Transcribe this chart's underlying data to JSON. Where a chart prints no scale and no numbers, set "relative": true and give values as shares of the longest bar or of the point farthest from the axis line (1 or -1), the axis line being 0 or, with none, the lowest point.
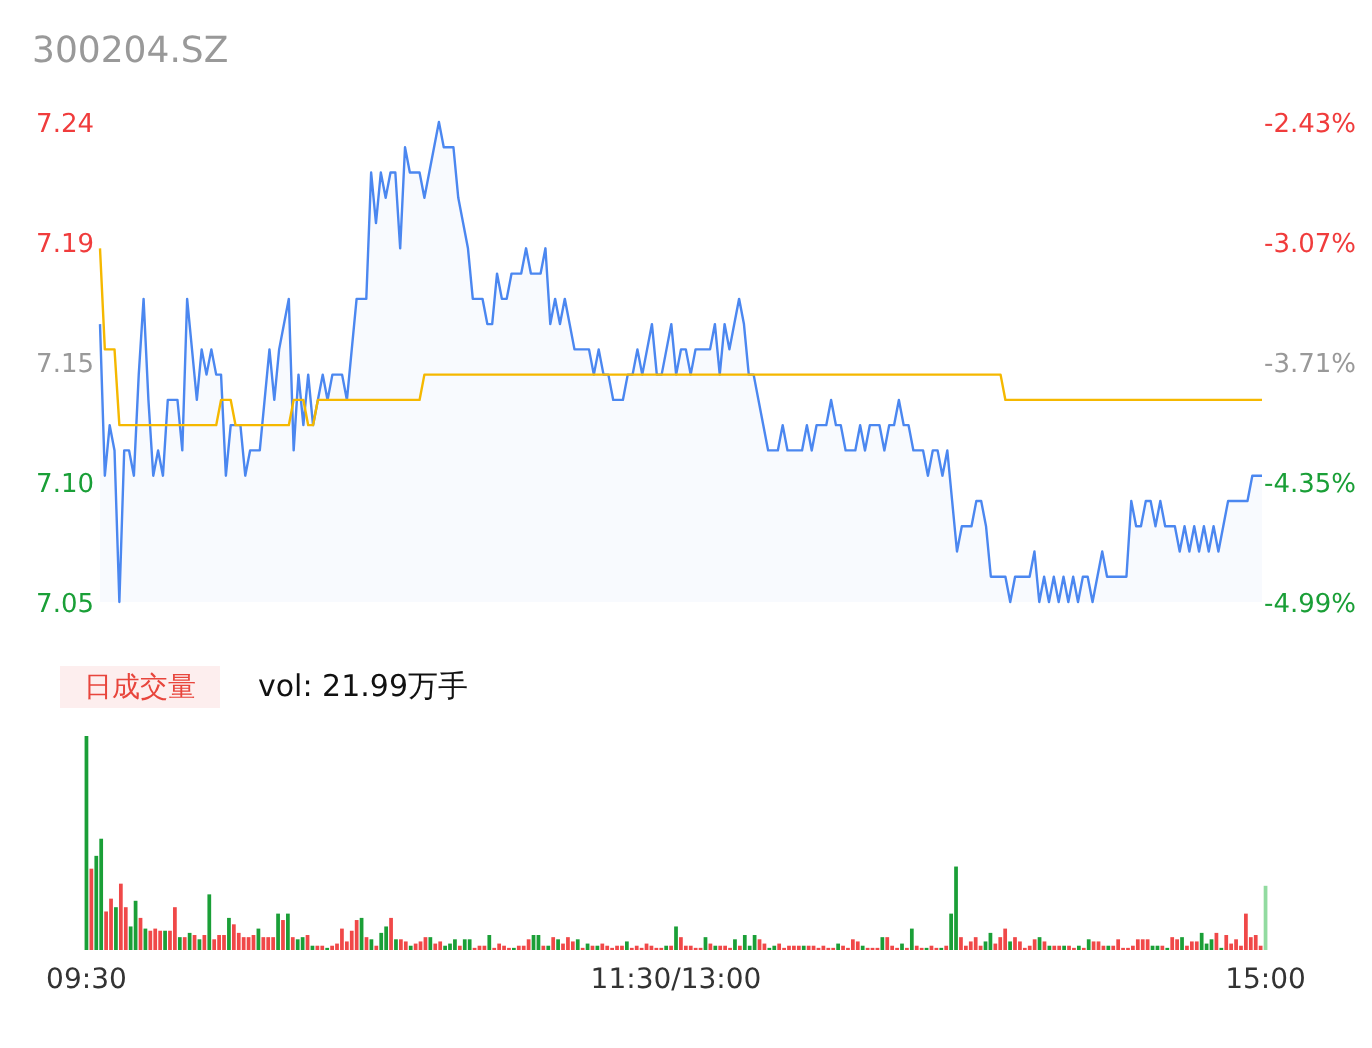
{
  "chart_data": [
    {
      "type": "line",
      "title": "300204.SZ",
      "ylim": [
        7.05,
        7.24
      ],
      "yticks": [
        {
          "value": 7.05,
          "label": "7.05"
        },
        {
          "value": 7.0975,
          "label": "7.10"
        },
        {
          "value": 7.145,
          "label": "7.15"
        },
        {
          "value": 7.1925,
          "label": "7.19"
        },
        {
          "value": 7.24,
          "label": "7.24"
        }
      ],
      "y2lim": [
        -4.99,
        -2.43
      ],
      "y2ticks": [
        {
          "value": -4.99,
          "label": "-4.99%"
        },
        {
          "value": -4.35,
          "label": "-4.35%"
        },
        {
          "value": -3.71,
          "label": "-3.71%"
        },
        {
          "value": -3.07,
          "label": "-3.07%"
        },
        {
          "value": -2.43,
          "label": "-2.43%"
        }
      ],
      "tick_labels": "y",
      "categories": [
        null,
        null,
        null,
        null,
        null,
        null,
        null,
        null,
        null,
        null,
        null,
        null,
        null,
        null,
        null,
        null,
        null,
        null,
        null,
        null,
        null,
        null,
        null,
        null,
        null,
        null,
        null,
        null,
        null,
        null,
        null,
        null,
        null,
        null,
        null,
        null,
        null,
        null,
        null,
        null,
        null,
        null,
        null,
        null,
        null,
        null,
        null,
        null,
        null,
        null,
        null,
        null,
        null,
        null,
        null,
        null,
        null,
        null,
        null,
        null,
        null,
        null,
        null,
        null,
        null,
        null,
        null,
        null,
        null,
        null,
        null,
        null,
        null,
        null,
        null,
        null,
        null,
        null,
        null,
        null,
        null,
        null,
        null,
        null,
        null,
        null,
        null,
        null,
        null,
        null,
        null,
        null,
        null,
        null,
        null,
        null,
        null,
        null,
        null,
        null,
        null,
        null,
        null,
        null,
        null,
        null,
        null,
        null,
        null,
        null,
        null,
        null,
        null,
        null,
        null,
        null,
        null,
        null,
        null,
        null,
        null,
        null,
        null,
        null,
        null,
        null,
        null,
        null,
        null,
        null,
        null,
        null,
        null,
        null,
        null,
        null,
        null,
        null,
        null,
        null,
        null,
        null,
        null,
        null,
        null,
        null,
        null,
        null,
        null,
        null,
        null,
        null,
        null,
        null,
        null,
        null,
        null,
        null,
        null,
        null,
        null,
        null,
        null,
        null,
        null,
        null,
        null,
        null,
        null,
        null,
        null,
        null,
        null,
        null,
        null,
        null,
        null,
        null,
        null,
        null,
        null,
        null,
        null,
        null,
        null,
        null,
        null,
        null,
        null,
        null,
        null,
        null,
        null,
        null,
        null,
        null,
        null,
        null,
        null,
        null,
        null,
        null,
        null,
        null,
        null,
        null,
        null,
        null,
        null,
        null,
        null,
        null,
        null,
        null,
        null,
        null,
        null,
        null,
        null,
        null,
        null,
        null,
        null,
        null,
        null,
        null,
        null,
        null,
        null,
        null,
        null,
        null,
        null,
        null,
        null,
        null,
        null,
        null,
        null,
        null,
        null
      ],
      "series": [
        {
          "type": "area",
          "color": "#4b87f0",
          "values": [
            7.16,
            7.1,
            7.12,
            7.11,
            7.05,
            7.11,
            7.11,
            7.1,
            7.14,
            7.17,
            7.13,
            7.1,
            7.11,
            7.1,
            7.13,
            7.13,
            7.13,
            7.11,
            7.17,
            7.15,
            7.13,
            7.15,
            7.14,
            7.15,
            7.14,
            7.14,
            7.1,
            7.12,
            7.12,
            7.12,
            7.1,
            7.11,
            7.11,
            7.11,
            7.13,
            7.15,
            7.13,
            7.15,
            7.16,
            7.17,
            7.11,
            7.14,
            7.12,
            7.14,
            7.12,
            7.13,
            7.14,
            7.13,
            7.14,
            7.14,
            7.14,
            7.13,
            7.15,
            7.17,
            7.17,
            7.17,
            7.22,
            7.2,
            7.22,
            7.21,
            7.22,
            7.22,
            7.19,
            7.23,
            7.22,
            7.22,
            7.22,
            7.21,
            7.22,
            7.23,
            7.24,
            7.23,
            7.23,
            7.23,
            7.21,
            7.2,
            7.19,
            7.17,
            7.17,
            7.17,
            7.16,
            7.16,
            7.18,
            7.17,
            7.17,
            7.18,
            7.18,
            7.18,
            7.19,
            7.18,
            7.18,
            7.18,
            7.19,
            7.16,
            7.17,
            7.16,
            7.17,
            7.16,
            7.15,
            7.15,
            7.15,
            7.15,
            7.14,
            7.15,
            7.14,
            7.14,
            7.13,
            7.13,
            7.13,
            7.14,
            7.14,
            7.15,
            7.14,
            7.15,
            7.16,
            7.14,
            7.14,
            7.15,
            7.16,
            7.14,
            7.15,
            7.15,
            7.14,
            7.15,
            7.15,
            7.15,
            7.15,
            7.16,
            7.14,
            7.16,
            7.15,
            7.16,
            7.17,
            7.16,
            7.14,
            7.14,
            7.13,
            7.12,
            7.11,
            7.11,
            7.11,
            7.12,
            7.11,
            7.11,
            7.11,
            7.11,
            7.12,
            7.11,
            7.12,
            7.12,
            7.12,
            7.13,
            7.12,
            7.12,
            7.11,
            7.11,
            7.11,
            7.12,
            7.11,
            7.12,
            7.12,
            7.12,
            7.11,
            7.12,
            7.12,
            7.13,
            7.12,
            7.12,
            7.11,
            7.11,
            7.11,
            7.1,
            7.11,
            7.11,
            7.1,
            7.11,
            7.09,
            7.07,
            7.08,
            7.08,
            7.08,
            7.09,
            7.09,
            7.08,
            7.06,
            7.06,
            7.06,
            7.06,
            7.05,
            7.06,
            7.06,
            7.06,
            7.06,
            7.07,
            7.05,
            7.06,
            7.05,
            7.06,
            7.05,
            7.06,
            7.05,
            7.06,
            7.05,
            7.06,
            7.06,
            7.05,
            7.06,
            7.07,
            7.06,
            7.06,
            7.06,
            7.06,
            7.06,
            7.09,
            7.08,
            7.08,
            7.09,
            7.09,
            7.08,
            7.09,
            7.08,
            7.08,
            7.08,
            7.07,
            7.08,
            7.07,
            7.08,
            7.07,
            7.08,
            7.07,
            7.08,
            7.07,
            7.08,
            7.09,
            7.09,
            7.09,
            7.09,
            7.09,
            7.1,
            7.1,
            7.1
          ]
        },
        {
          "type": "line",
          "color": "#f5b800",
          "values": [
            7.19,
            7.15,
            7.15,
            7.15,
            7.12,
            7.12,
            7.12,
            7.12,
            7.12,
            7.12,
            7.12,
            7.12,
            7.12,
            7.12,
            7.12,
            7.12,
            7.12,
            7.12,
            7.12,
            7.12,
            7.12,
            7.12,
            7.12,
            7.12,
            7.12,
            7.13,
            7.13,
            7.13,
            7.12,
            7.12,
            7.12,
            7.12,
            7.12,
            7.12,
            7.12,
            7.12,
            7.12,
            7.12,
            7.12,
            7.12,
            7.13,
            7.13,
            7.13,
            7.12,
            7.12,
            7.13,
            7.13,
            7.13,
            7.13,
            7.13,
            7.13,
            7.13,
            7.13,
            7.13,
            7.13,
            7.13,
            7.13,
            7.13,
            7.13,
            7.13,
            7.13,
            7.13,
            7.13,
            7.13,
            7.13,
            7.13,
            7.13,
            7.14,
            7.14,
            7.14,
            7.14,
            7.14,
            7.14,
            7.14,
            7.14,
            7.14,
            7.14,
            7.14,
            7.14,
            7.14,
            7.14,
            7.14,
            7.14,
            7.14,
            7.14,
            7.14,
            7.14,
            7.14,
            7.14,
            7.14,
            7.14,
            7.14,
            7.14,
            7.14,
            7.14,
            7.14,
            7.14,
            7.14,
            7.14,
            7.14,
            7.14,
            7.14,
            7.14,
            7.14,
            7.14,
            7.14,
            7.14,
            7.14,
            7.14,
            7.14,
            7.14,
            7.14,
            7.14,
            7.14,
            7.14,
            7.14,
            7.14,
            7.14,
            7.14,
            7.14,
            7.14,
            7.14,
            7.14,
            7.14,
            7.14,
            7.14,
            7.14,
            7.14,
            7.14,
            7.14,
            7.14,
            7.14,
            7.14,
            7.14,
            7.14,
            7.14,
            7.14,
            7.14,
            7.14,
            7.14,
            7.14,
            7.14,
            7.14,
            7.14,
            7.14,
            7.14,
            7.14,
            7.14,
            7.14,
            7.14,
            7.14,
            7.14,
            7.14,
            7.14,
            7.14,
            7.14,
            7.14,
            7.14,
            7.14,
            7.14,
            7.14,
            7.14,
            7.14,
            7.14,
            7.14,
            7.14,
            7.14,
            7.14,
            7.14,
            7.14,
            7.14,
            7.14,
            7.14,
            7.14,
            7.14,
            7.14,
            7.14,
            7.14,
            7.14,
            7.14,
            7.14,
            7.14,
            7.14,
            7.14,
            7.14,
            7.14,
            7.14,
            7.13,
            7.13,
            7.13,
            7.13,
            7.13,
            7.13,
            7.13,
            7.13,
            7.13,
            7.13,
            7.13,
            7.13,
            7.13,
            7.13,
            7.13,
            7.13,
            7.13,
            7.13,
            7.13,
            7.13,
            7.13,
            7.13,
            7.13,
            7.13,
            7.13,
            7.13,
            7.13,
            7.13,
            7.13,
            7.13,
            7.13,
            7.13,
            7.13,
            7.13,
            7.13,
            7.13,
            7.13,
            7.13,
            7.13,
            7.13,
            7.13,
            7.13,
            7.13,
            7.13,
            7.13,
            7.13,
            7.13,
            7.13,
            7.13,
            7.13,
            7.13,
            7.13,
            7.13,
            7.13
          ]
        }
      ]
    },
    {
      "type": "bar",
      "relative": true,
      "tick_labels": "x",
      "annotations": [
        "日成交量",
        "vol: 21.99万手"
      ],
      "categories": [
        "09:30",
        null,
        null,
        null,
        null,
        null,
        null,
        null,
        null,
        null,
        null,
        null,
        null,
        null,
        null,
        null,
        null,
        null,
        null,
        null,
        null,
        null,
        null,
        null,
        null,
        null,
        null,
        null,
        null,
        null,
        null,
        null,
        null,
        null,
        null,
        null,
        null,
        null,
        null,
        null,
        null,
        null,
        null,
        null,
        null,
        null,
        null,
        null,
        null,
        null,
        null,
        null,
        null,
        null,
        null,
        null,
        null,
        null,
        null,
        null,
        null,
        null,
        null,
        null,
        null,
        null,
        null,
        null,
        null,
        null,
        null,
        null,
        null,
        null,
        null,
        null,
        null,
        null,
        null,
        null,
        null,
        null,
        null,
        null,
        null,
        null,
        null,
        null,
        null,
        null,
        null,
        null,
        null,
        null,
        null,
        null,
        null,
        null,
        null,
        null,
        null,
        null,
        null,
        null,
        null,
        null,
        null,
        null,
        null,
        null,
        null,
        null,
        null,
        null,
        null,
        null,
        null,
        null,
        null,
        null,
        "11:30/13:00",
        null,
        null,
        null,
        null,
        null,
        null,
        null,
        null,
        null,
        null,
        null,
        null,
        null,
        null,
        null,
        null,
        null,
        null,
        null,
        null,
        null,
        null,
        null,
        null,
        null,
        null,
        null,
        null,
        null,
        null,
        null,
        null,
        null,
        null,
        null,
        null,
        null,
        null,
        null,
        null,
        null,
        null,
        null,
        null,
        null,
        null,
        null,
        null,
        null,
        null,
        null,
        null,
        null,
        null,
        null,
        null,
        null,
        null,
        null,
        null,
        null,
        null,
        null,
        null,
        null,
        null,
        null,
        null,
        null,
        null,
        null,
        null,
        null,
        null,
        null,
        null,
        null,
        null,
        null,
        null,
        null,
        null,
        null,
        null,
        null,
        null,
        null,
        null,
        null,
        null,
        null,
        null,
        null,
        null,
        null,
        null,
        null,
        null,
        null,
        null,
        null,
        null,
        null,
        null,
        null,
        null,
        null,
        null,
        null,
        null,
        null,
        null,
        null,
        null,
        null,
        null,
        null,
        null,
        null,
        "15:00"
      ],
      "values": [
        1.0,
        0.38,
        0.44,
        0.52,
        0.18,
        0.24,
        0.2,
        0.31,
        0.2,
        0.11,
        0.23,
        0.15,
        0.1,
        0.09,
        0.1,
        0.09,
        0.09,
        0.09,
        0.2,
        0.06,
        0.06,
        0.08,
        0.07,
        0.05,
        0.07,
        0.26,
        0.05,
        0.07,
        0.07,
        0.15,
        0.12,
        0.08,
        0.06,
        0.06,
        0.07,
        0.1,
        0.06,
        0.06,
        0.06,
        0.17,
        0.14,
        0.17,
        0.06,
        0.05,
        0.06,
        0.07,
        0.02,
        0.02,
        0.02,
        0.01,
        0.02,
        0.03,
        0.1,
        0.04,
        0.09,
        0.14,
        0.15,
        0.06,
        0.05,
        0.02,
        0.08,
        0.11,
        0.15,
        0.05,
        0.05,
        0.04,
        0.02,
        0.03,
        0.04,
        0.06,
        0.06,
        0.03,
        0.04,
        0.02,
        0.03,
        0.05,
        0.02,
        0.05,
        0.05,
        0.01,
        0.02,
        0.02,
        0.07,
        0.01,
        0.03,
        0.02,
        0.01,
        0.01,
        0.02,
        0.02,
        0.05,
        0.07,
        0.07,
        0.02,
        0.02,
        0.06,
        0.05,
        0.03,
        0.06,
        0.04,
        0.05,
        0.01,
        0.03,
        0.02,
        0.02,
        0.03,
        0.02,
        0.01,
        0.02,
        0.02,
        0.04,
        0.01,
        0.02,
        0.01,
        0.03,
        0.02,
        0.01,
        0.01,
        0.02,
        0.02,
        0.11,
        0.06,
        0.02,
        0.02,
        0.01,
        0.01,
        0.06,
        0.03,
        0.02,
        0.02,
        0.02,
        0.01,
        0.05,
        0.02,
        0.07,
        0.02,
        0.07,
        0.05,
        0.03,
        0.01,
        0.02,
        0.03,
        0.01,
        0.02,
        0.02,
        0.02,
        0.02,
        0.02,
        0.02,
        0.01,
        0.02,
        0.01,
        0.01,
        0.03,
        0.02,
        0.01,
        0.05,
        0.04,
        0.02,
        0.01,
        0.01,
        0.01,
        0.06,
        0.06,
        0.02,
        0.01,
        0.03,
        0.01,
        0.1,
        0.02,
        0.01,
        0.01,
        0.02,
        0.01,
        0.01,
        0.02,
        0.17,
        0.39,
        0.06,
        0.02,
        0.04,
        0.06,
        0.02,
        0.04,
        0.08,
        0.03,
        0.06,
        0.1,
        0.04,
        0.06,
        0.04,
        0.01,
        0.02,
        0.05,
        0.06,
        0.04,
        0.02,
        0.02,
        0.02,
        0.02,
        0.02,
        0.01,
        0.02,
        0.01,
        0.05,
        0.04,
        0.04,
        0.02,
        0.02,
        0.02,
        0.05,
        0.01,
        0.01,
        0.02,
        0.05,
        0.05,
        0.05,
        0.02,
        0.02,
        0.02,
        0.01,
        0.06,
        0.05,
        0.06,
        0.02,
        0.04,
        0.04,
        0.08,
        0.03,
        0.05,
        0.08,
        0.01,
        0.07,
        0.03,
        0.05,
        0.02,
        0.17,
        0.06,
        0.07,
        0.02,
        0.3
      ],
      "colors": [
        "#1a9f37",
        "#f04848",
        "#1a9f37",
        "#1a9f37",
        "#f04848",
        "#f04848",
        "#1a9f37",
        "#f04848",
        "#f04848",
        "#1a9f37",
        "#1a9f37",
        "#f04848",
        "#1a9f37",
        "#f04848",
        "#f04848",
        "#f04848",
        "#1a9f37",
        "#f04848",
        "#f04848",
        "#1a9f37",
        "#f04848",
        "#1a9f37",
        "#f04848",
        "#1a9f37",
        "#f04848",
        "#1a9f37",
        "#f04848",
        "#f04848",
        "#f04848",
        "#1a9f37",
        "#f04848",
        "#f04848",
        "#f04848",
        "#f04848",
        "#f04848",
        "#1a9f37",
        "#f04848",
        "#f04848",
        "#f04848",
        "#1a9f37",
        "#f04848",
        "#1a9f37",
        "#f04848",
        "#1a9f37",
        "#1a9f37",
        "#f04848",
        "#1a9f37",
        "#f04848",
        "#f04848",
        "#1a9f37",
        "#f04848",
        "#f04848",
        "#f04848",
        "#f04848",
        "#f04848",
        "#f04848",
        "#1a9f37",
        "#f04848",
        "#1a9f37",
        "#f04848",
        "#1a9f37",
        "#1a9f37",
        "#f04848",
        "#1a9f37",
        "#f04848",
        "#f04848",
        "#1a9f37",
        "#f04848",
        "#f04848",
        "#f04848",
        "#1a9f37",
        "#f04848",
        "#f04848",
        "#1a9f37",
        "#1a9f37",
        "#1a9f37",
        "#f04848",
        "#1a9f37",
        "#1a9f37",
        "#f04848",
        "#f04848",
        "#f04848",
        "#1a9f37",
        "#f04848",
        "#f04848",
        "#f04848",
        "#f04848",
        "#1a9f37",
        "#f04848",
        "#f04848",
        "#f04848",
        "#1a9f37",
        "#1a9f37",
        "#f04848",
        "#1a9f37",
        "#f04848",
        "#1a9f37",
        "#f04848",
        "#f04848",
        "#f04848",
        "#1a9f37",
        "#f04848",
        "#1a9f37",
        "#f04848",
        "#1a9f37",
        "#f04848",
        "#f04848",
        "#f04848",
        "#f04848",
        "#f04848",
        "#1a9f37",
        "#f04848",
        "#f04848",
        "#f04848",
        "#f04848",
        "#f04848",
        "#f04848",
        "#f04848",
        "#1a9f37",
        "#f04848",
        "#1a9f37",
        "#f04848",
        "#f04848",
        "#f04848",
        "#f04848",
        "#f04848",
        "#1a9f37",
        "#f04848",
        "#1a9f37",
        "#f04848",
        "#f04848",
        "#f04848",
        "#1a9f37",
        "#f04848",
        "#1a9f37",
        "#1a9f37",
        "#1a9f37",
        "#f04848",
        "#f04848",
        "#1a9f37",
        "#1a9f37",
        "#f04848",
        "#f04848",
        "#f04848",
        "#f04848",
        "#f04848",
        "#1a9f37",
        "#f04848",
        "#f04848",
        "#f04848",
        "#f04848",
        "#f04848",
        "#f04848",
        "#1a9f37",
        "#f04848",
        "#f04848",
        "#f04848",
        "#f04848",
        "#1a9f37",
        "#f04848",
        "#f04848",
        "#f04848",
        "#1a9f37",
        "#f04848",
        "#f04848",
        "#f04848",
        "#1a9f37",
        "#f04848",
        "#1a9f37",
        "#f04848",
        "#f04848",
        "#1a9f37",
        "#f04848",
        "#f04848",
        "#1a9f37",
        "#f04848",
        "#1a9f37",
        "#1a9f37",
        "#f04848",
        "#f04848",
        "#f04848",
        "#f04848",
        "#f04848",
        "#1a9f37",
        "#1a9f37",
        "#f04848",
        "#f04848",
        "#f04848",
        "#1a9f37",
        "#f04848",
        "#f04848",
        "#f04848",
        "#f04848",
        "#f04848",
        "#1a9f37",
        "#f04848",
        "#1a9f37",
        "#f04848",
        "#f04848",
        "#1a9f37",
        "#f04848",
        "#f04848",
        "#1a9f37",
        "#f04848",
        "#1a9f37",
        "#f04848",
        "#f04848",
        "#f04848",
        "#1a9f37",
        "#f04848",
        "#f04848",
        "#f04848",
        "#f04848",
        "#f04848",
        "#f04848",
        "#f04848",
        "#f04848",
        "#1a9f37",
        "#1a9f37",
        "#f04848",
        "#1a9f37",
        "#f04848",
        "#f04848",
        "#1a9f37",
        "#f04848",
        "#f04848",
        "#f04848",
        "#1a9f37",
        "#1a9f37",
        "#1a9f37",
        "#f04848",
        "#1a9f37",
        "#f04848",
        "#f04848",
        "#f04848",
        "#f04848",
        "#f04848",
        "#f04848",
        "#f04848",
        "#f04848",
        "#92dba0"
      ]
    }
  ]
}
